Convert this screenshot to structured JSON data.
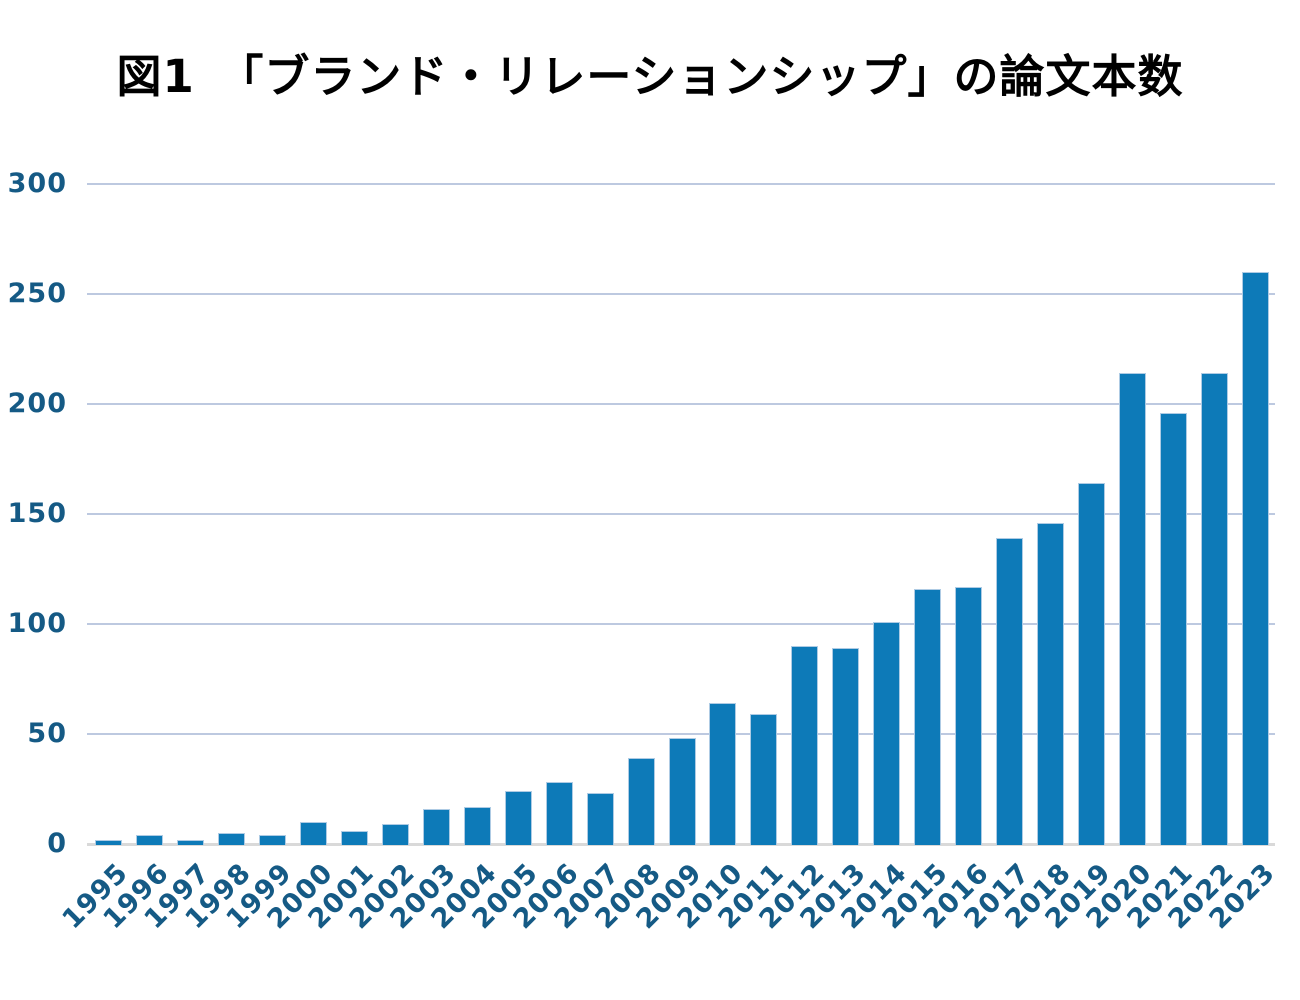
{
  "title": "図1　「ブランド・リレーションシップ」の論文本数",
  "colors": {
    "background": "#ffffff",
    "title": "#000000",
    "bar_fill": "#0d7ab8",
    "bar_border": "#aecbe4",
    "tick_label": "#155a85",
    "gridline": "#bdc9e0",
    "axis_line": "#d9d9d9"
  },
  "chart_data": {
    "type": "bar",
    "title": "図1　「ブランド・リレーションシップ」の論文本数",
    "categories": [
      "1995",
      "1996",
      "1997",
      "1998",
      "1999",
      "2000",
      "2001",
      "2002",
      "2003",
      "2004",
      "2005",
      "2006",
      "2007",
      "2008",
      "2009",
      "2010",
      "2011",
      "2012",
      "2013",
      "2014",
      "2015",
      "2016",
      "2017",
      "2018",
      "2019",
      "2020",
      "2021",
      "2022",
      "2023"
    ],
    "values": [
      2,
      4,
      2,
      5,
      4,
      10,
      6,
      9,
      16,
      17,
      24,
      28,
      23,
      39,
      48,
      64,
      59,
      90,
      89,
      101,
      116,
      117,
      139,
      146,
      164,
      214,
      196,
      214,
      260
    ],
    "xlabel": "",
    "ylabel": "",
    "ylim": [
      0,
      300
    ],
    "yticks": [
      0,
      50,
      100,
      150,
      200,
      250,
      300
    ],
    "grid": true,
    "legend": false,
    "x_tick_rotation_deg": 45,
    "series_name": "論文本数"
  }
}
